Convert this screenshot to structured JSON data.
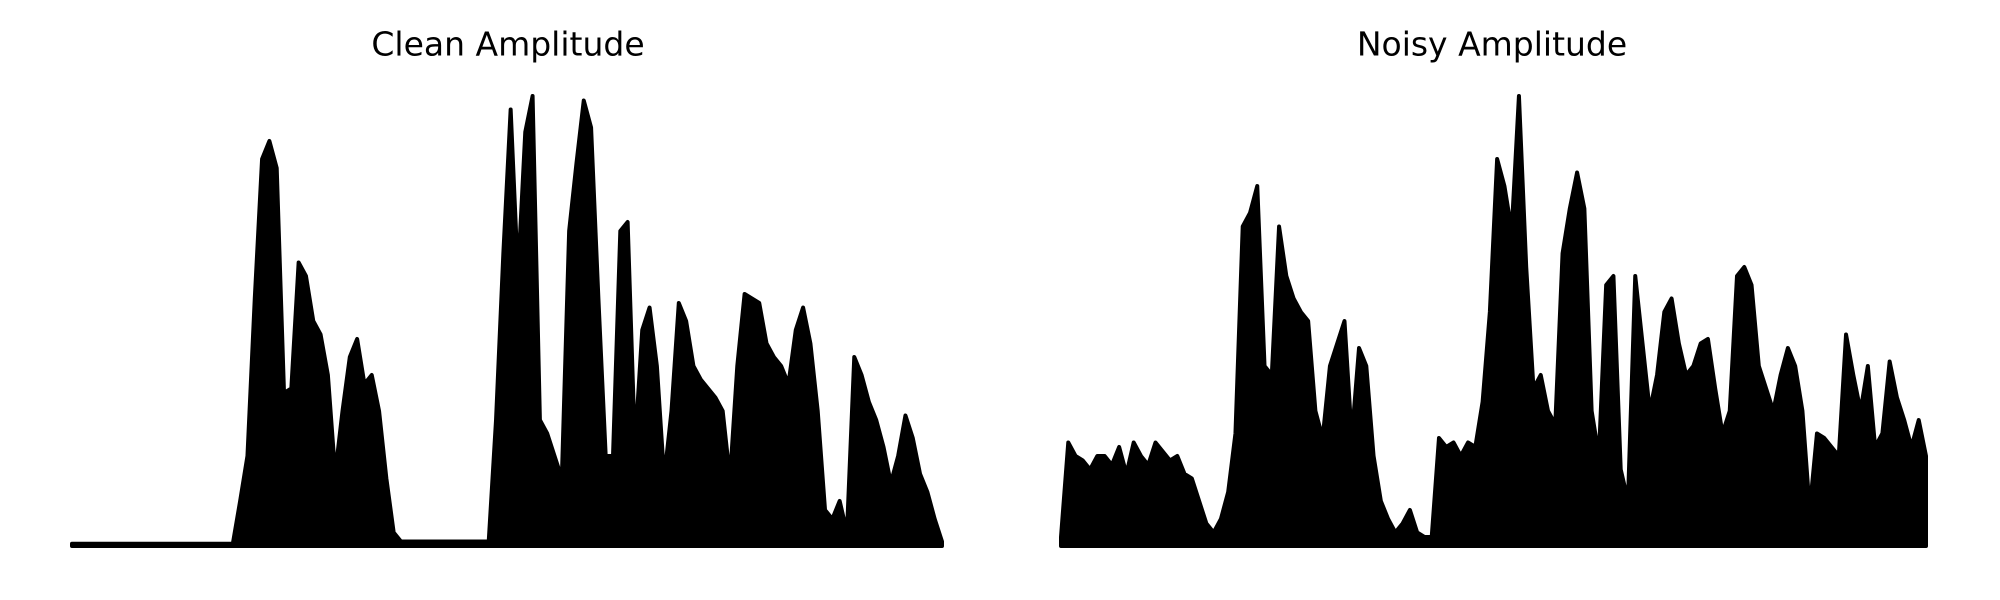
{
  "chart_data": [
    {
      "type": "area",
      "title": "Clean Amplitude",
      "color": "#000000",
      "ylim": [
        0,
        1
      ],
      "values": [
        0.005,
        0.005,
        0.005,
        0.005,
        0.005,
        0.005,
        0.005,
        0.005,
        0.005,
        0.005,
        0.005,
        0.005,
        0.005,
        0.005,
        0.005,
        0.005,
        0.005,
        0.005,
        0.005,
        0.005,
        0.005,
        0.005,
        0.005,
        0.1,
        0.2,
        0.55,
        0.86,
        0.9,
        0.84,
        0.34,
        0.35,
        0.63,
        0.6,
        0.5,
        0.47,
        0.38,
        0.16,
        0.3,
        0.42,
        0.46,
        0.36,
        0.38,
        0.3,
        0.15,
        0.03,
        0.01,
        0.01,
        0.01,
        0.01,
        0.01,
        0.01,
        0.01,
        0.01,
        0.01,
        0.01,
        0.01,
        0.01,
        0.01,
        0.28,
        0.65,
        0.97,
        0.6,
        0.92,
        1.0,
        0.28,
        0.25,
        0.2,
        0.15,
        0.7,
        0.85,
        0.99,
        0.93,
        0.55,
        0.2,
        0.2,
        0.7,
        0.72,
        0.22,
        0.48,
        0.53,
        0.4,
        0.15,
        0.3,
        0.54,
        0.5,
        0.4,
        0.37,
        0.35,
        0.33,
        0.3,
        0.15,
        0.4,
        0.56,
        0.55,
        0.54,
        0.45,
        0.42,
        0.4,
        0.36,
        0.48,
        0.53,
        0.45,
        0.3,
        0.08,
        0.06,
        0.1,
        0.03,
        0.42,
        0.38,
        0.32,
        0.28,
        0.22,
        0.14,
        0.2,
        0.29,
        0.24,
        0.16,
        0.12,
        0.06,
        0.01
      ]
    },
    {
      "type": "area",
      "title": "Noisy Amplitude",
      "color": "#000000",
      "ylim": [
        0,
        1
      ],
      "values": [
        0.02,
        0.23,
        0.2,
        0.19,
        0.17,
        0.2,
        0.2,
        0.18,
        0.22,
        0.16,
        0.23,
        0.2,
        0.18,
        0.23,
        0.21,
        0.19,
        0.2,
        0.16,
        0.15,
        0.1,
        0.05,
        0.03,
        0.06,
        0.12,
        0.25,
        0.71,
        0.74,
        0.8,
        0.4,
        0.38,
        0.71,
        0.6,
        0.55,
        0.52,
        0.5,
        0.3,
        0.24,
        0.4,
        0.45,
        0.5,
        0.24,
        0.44,
        0.4,
        0.2,
        0.1,
        0.06,
        0.03,
        0.05,
        0.08,
        0.03,
        0.02,
        0.02,
        0.24,
        0.22,
        0.23,
        0.2,
        0.23,
        0.22,
        0.32,
        0.52,
        0.86,
        0.8,
        0.7,
        1.0,
        0.62,
        0.35,
        0.38,
        0.3,
        0.27,
        0.65,
        0.75,
        0.83,
        0.75,
        0.3,
        0.2,
        0.58,
        0.6,
        0.17,
        0.1,
        0.6,
        0.45,
        0.3,
        0.38,
        0.52,
        0.55,
        0.45,
        0.38,
        0.4,
        0.45,
        0.46,
        0.35,
        0.25,
        0.3,
        0.6,
        0.62,
        0.58,
        0.4,
        0.35,
        0.3,
        0.38,
        0.44,
        0.4,
        0.3,
        0.08,
        0.25,
        0.24,
        0.22,
        0.2,
        0.47,
        0.38,
        0.3,
        0.4,
        0.22,
        0.25,
        0.41,
        0.33,
        0.28,
        0.22,
        0.28,
        0.2
      ]
    }
  ]
}
